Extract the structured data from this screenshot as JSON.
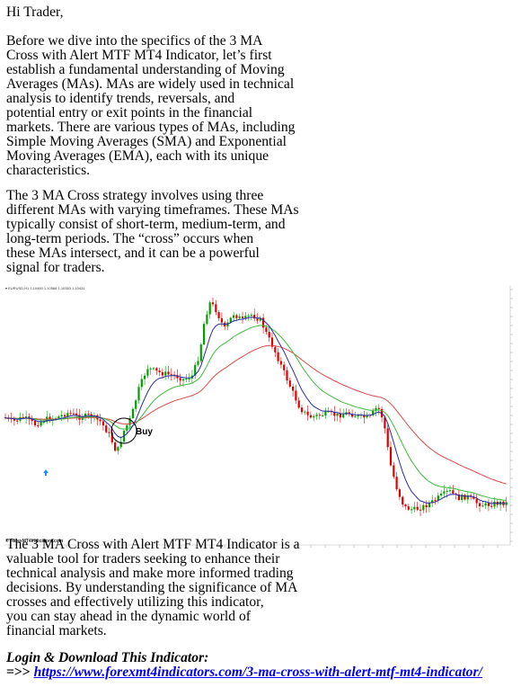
{
  "greeting": "Hi Trader,",
  "intro_lines": [
    "Before we dive into the specifics of the 3 MA",
    "Cross with Alert MTF MT4 Indicator, let’s first",
    "establish a fundamental understanding of Moving",
    "Averages (MAs). MAs are widely used in technical",
    "analysis to identify trends, reversals, and",
    "potential entry or exit points in the financial",
    "markets. There are various types of MAs, including",
    "Simple Moving Averages (SMA) and Exponential",
    "Moving Averages (EMA), each with its unique",
    "characteristics."
  ],
  "strategy_lines": [
    "The 3 MA Cross strategy involves using three",
    "different MAs with varying timeframes. These MAs",
    "typically consist of short-term, medium-term, and",
    "long-term periods. The “cross” occurs when",
    "these MAs intersect, and it can be a powerful",
    "signal for traders."
  ],
  "chart": {
    "header": "▾ EURUSD,H1 1.10460 1.10568 1.10383 1.10431",
    "watermark": "© ForexMT4Indicators.com",
    "buy_label": "Buy",
    "colors": {
      "bull": "#00a000",
      "bear": "#e00000",
      "fast_ma": "#2a2aa8",
      "mid_ma": "#3cb83c",
      "slow_ma": "#d84848",
      "buy_arrow": "#1e90ff"
    }
  },
  "summary_lines": [
    "The 3 MA Cross with Alert MTF MT4 Indicator is a",
    "valuable tool for traders seeking to enhance their",
    "technical analysis and make more informed trading",
    "decisions. By understanding the significance of MA",
    "crosses and effectively utilizing this indicator,",
    "you can stay ahead in the dynamic world of",
    "financial markets."
  ],
  "login_heading": "Login & Download This Indicator:",
  "link_prefix": "=>> ",
  "link_text": "https://www.forexmt4indicators.com/3-ma-cross-with-alert-mtf-mt4-indicator/"
}
